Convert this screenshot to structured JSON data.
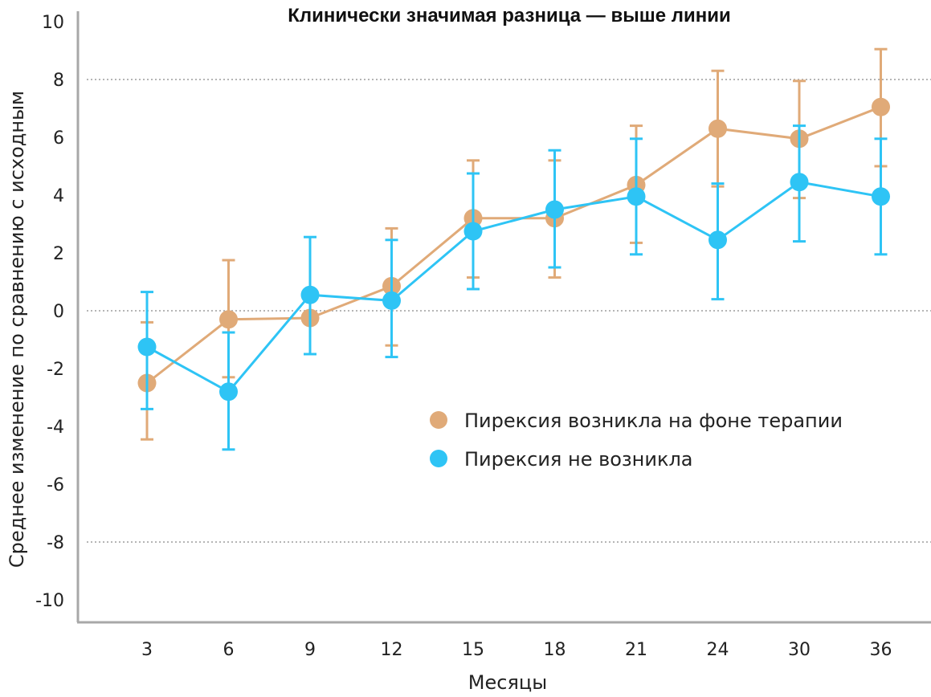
{
  "chart_data": {
    "type": "line",
    "title": "Клинически значимая разница — выше линии",
    "xlabel": "Месяцы",
    "ylabel": "Среднее изменение по сравнению с исходным",
    "categories": [
      "3",
      "6",
      "9",
      "12",
      "15",
      "18",
      "21",
      "24",
      "30",
      "36"
    ],
    "y_ticks": [
      "10",
      "8",
      "6",
      "4",
      "2",
      "0",
      "-2",
      "-4",
      "-6",
      "-8",
      "-10"
    ],
    "ylim": [
      -10,
      10
    ],
    "reference_lines": [
      8,
      0,
      -8
    ],
    "legend_position": "center-right",
    "series": [
      {
        "name": "Пирексия возникла на фоне терапии",
        "color": "#e0aa78",
        "values": [
          -2.5,
          -0.3,
          -0.25,
          0.85,
          3.2,
          3.2,
          4.35,
          6.3,
          5.95,
          7.05
        ],
        "err_upper": [
          -0.4,
          1.75,
          null,
          2.85,
          5.2,
          5.2,
          6.4,
          8.3,
          7.95,
          9.05
        ],
        "err_lower": [
          -4.45,
          -2.3,
          null,
          -1.2,
          1.15,
          1.15,
          2.35,
          4.3,
          3.9,
          5.0
        ]
      },
      {
        "name": "Пирексия не возникла",
        "color": "#2ec4f5",
        "values": [
          -1.25,
          -2.8,
          0.55,
          0.35,
          2.75,
          3.5,
          3.95,
          2.45,
          4.45,
          3.95
        ],
        "err_upper": [
          0.65,
          -0.75,
          2.55,
          2.45,
          4.75,
          5.55,
          5.95,
          4.4,
          6.4,
          5.95
        ],
        "err_lower": [
          -3.4,
          -4.8,
          -1.5,
          -1.6,
          0.75,
          1.5,
          1.95,
          0.4,
          2.4,
          1.95
        ]
      }
    ]
  }
}
